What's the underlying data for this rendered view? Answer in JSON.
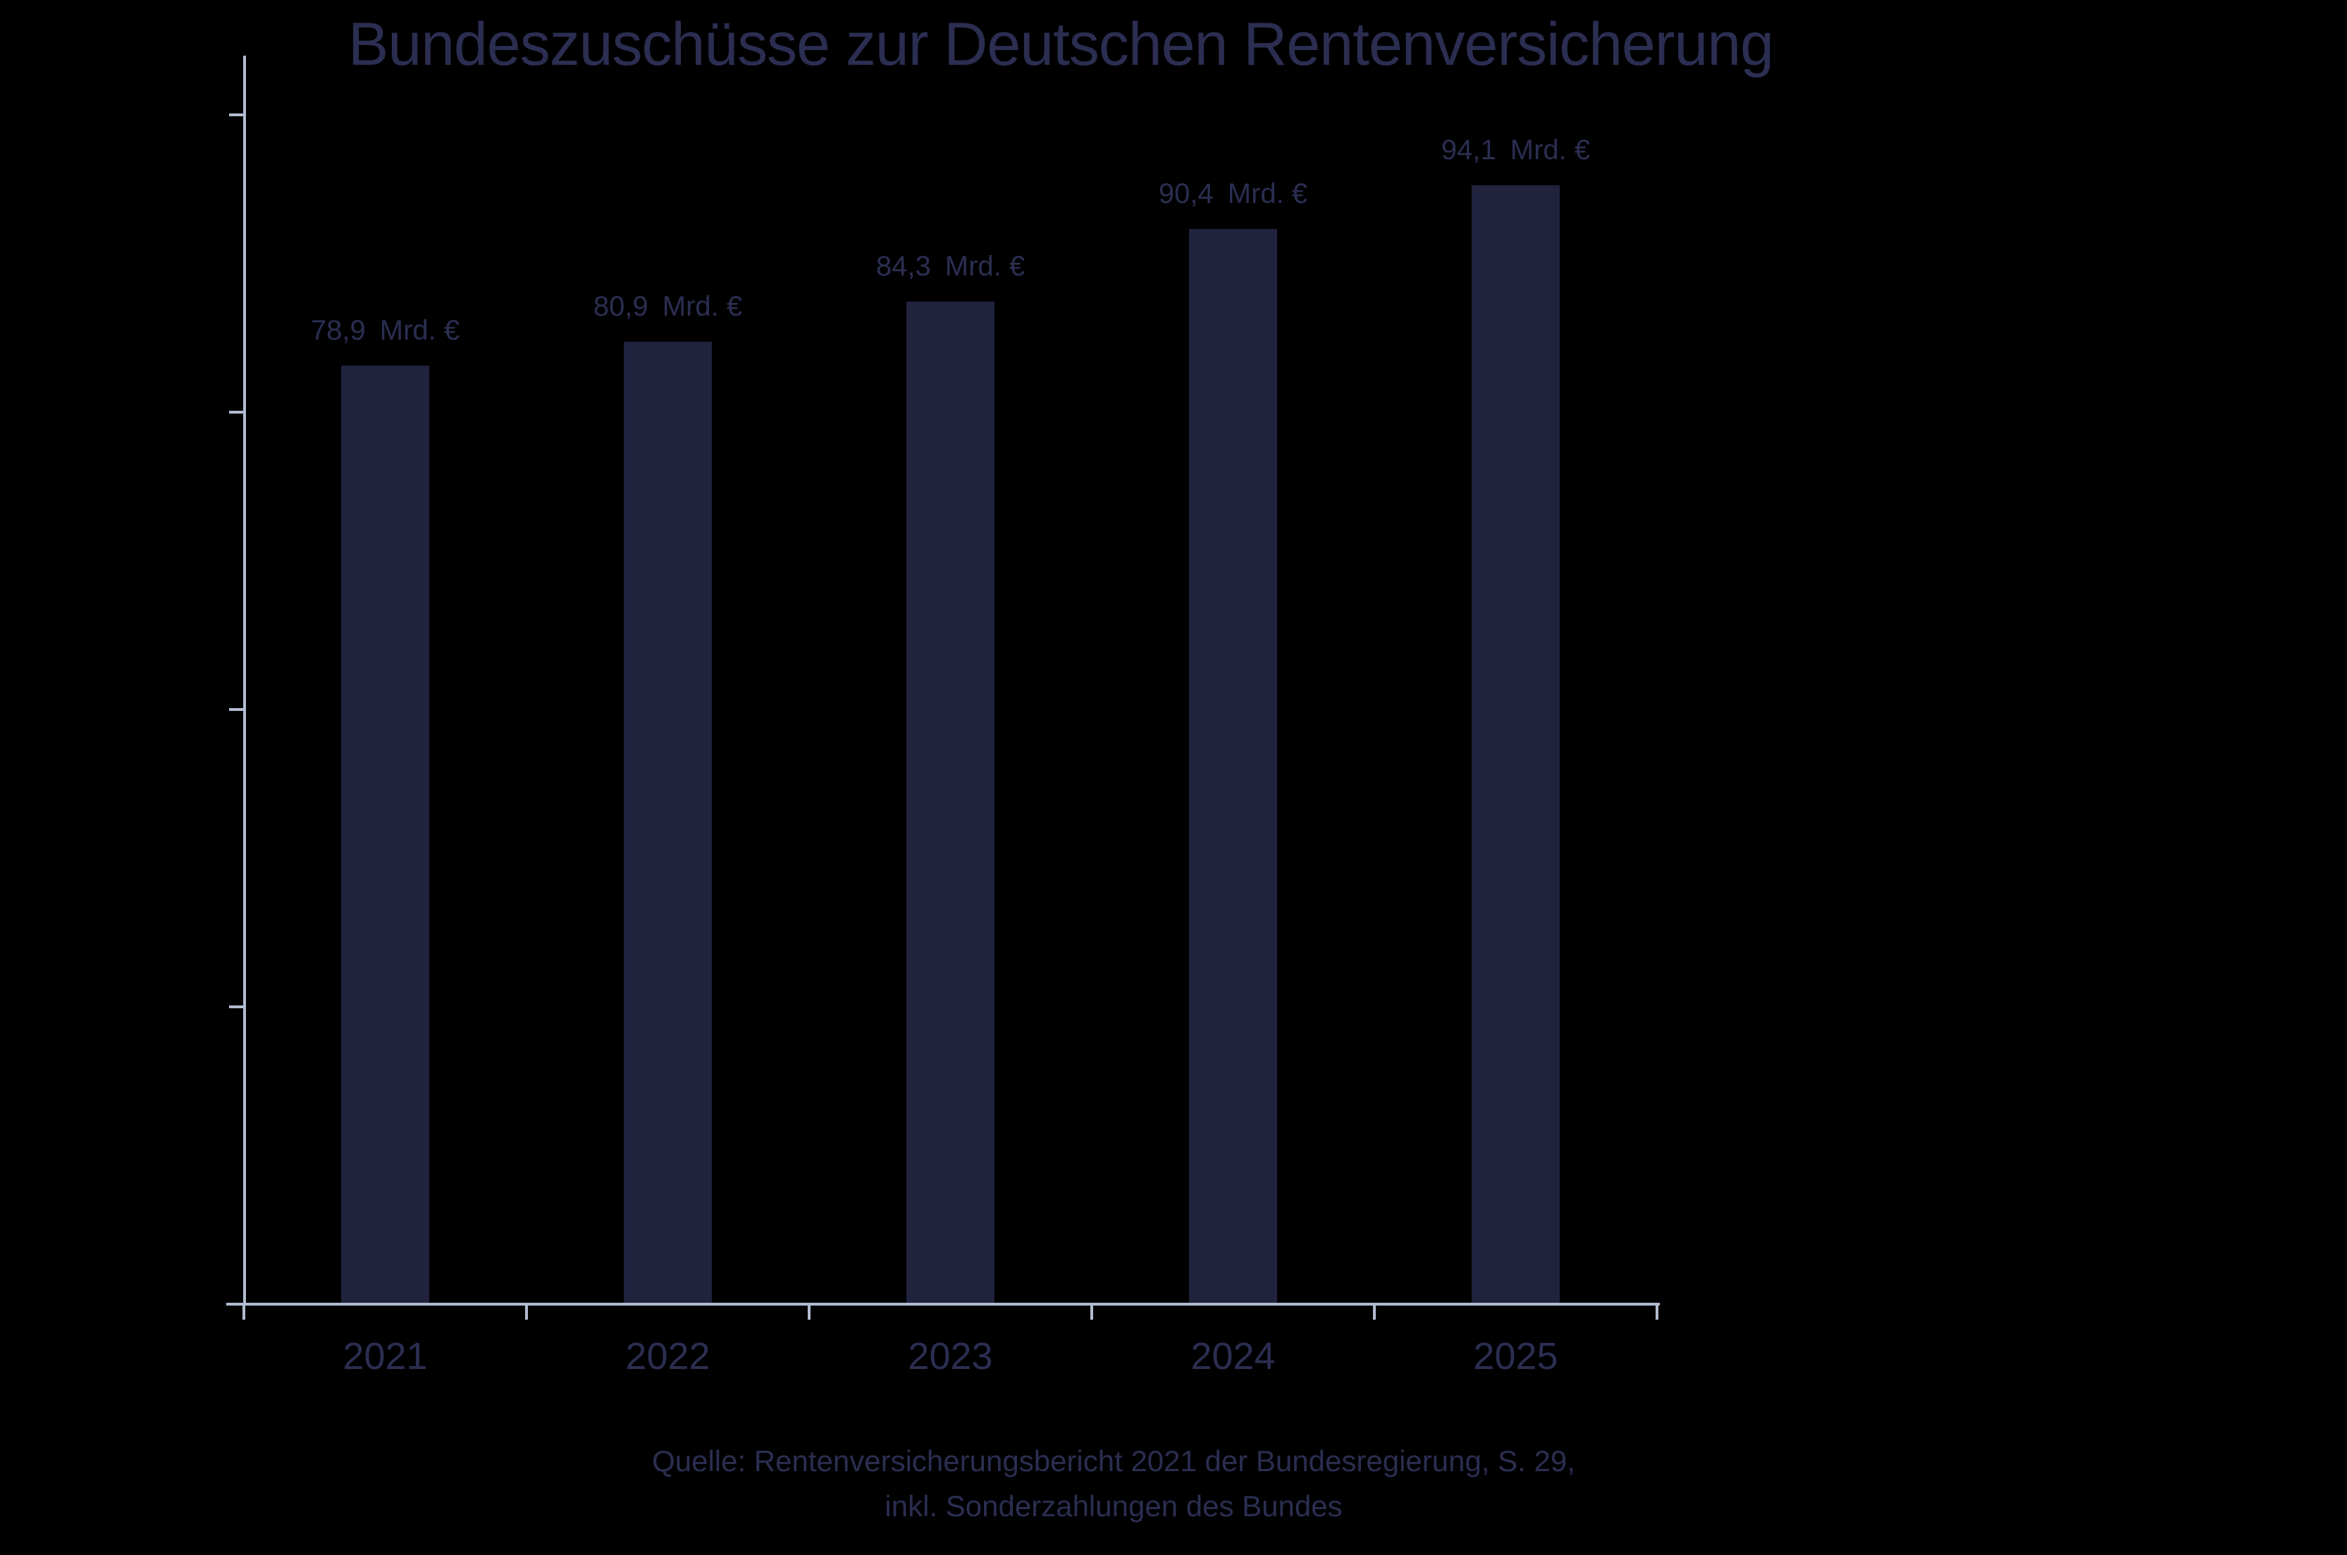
{
  "colors": {
    "background": "#000000",
    "bar": "#20223e",
    "text": "#2b2e51",
    "axis": "#b1bcd1"
  },
  "chart_data": {
    "type": "bar",
    "title": "Bundeszuschüsse zur Deutschen Rentenversicherung",
    "categories": [
      "2021",
      "2022",
      "2023",
      "2024",
      "2025"
    ],
    "values": [
      78.9,
      80.9,
      84.3,
      90.4,
      94.1
    ],
    "bar_value_labels": [
      "78,9",
      "80,9",
      "84,3",
      "90,4",
      "94,1"
    ],
    "bar_unit_label": "Mrd. €",
    "xlabel": "",
    "ylabel": "",
    "ylim": [
      0,
      105
    ],
    "yticks": [
      25,
      50,
      75,
      100
    ],
    "ytick_labels_visible": false,
    "grid": false,
    "legend": "none",
    "source_lines": [
      "Quelle: Rentenversicherungsbericht 2021 der Bundesregierung, S. 29,",
      "inkl. Sonderzahlungen des Bundes"
    ]
  }
}
